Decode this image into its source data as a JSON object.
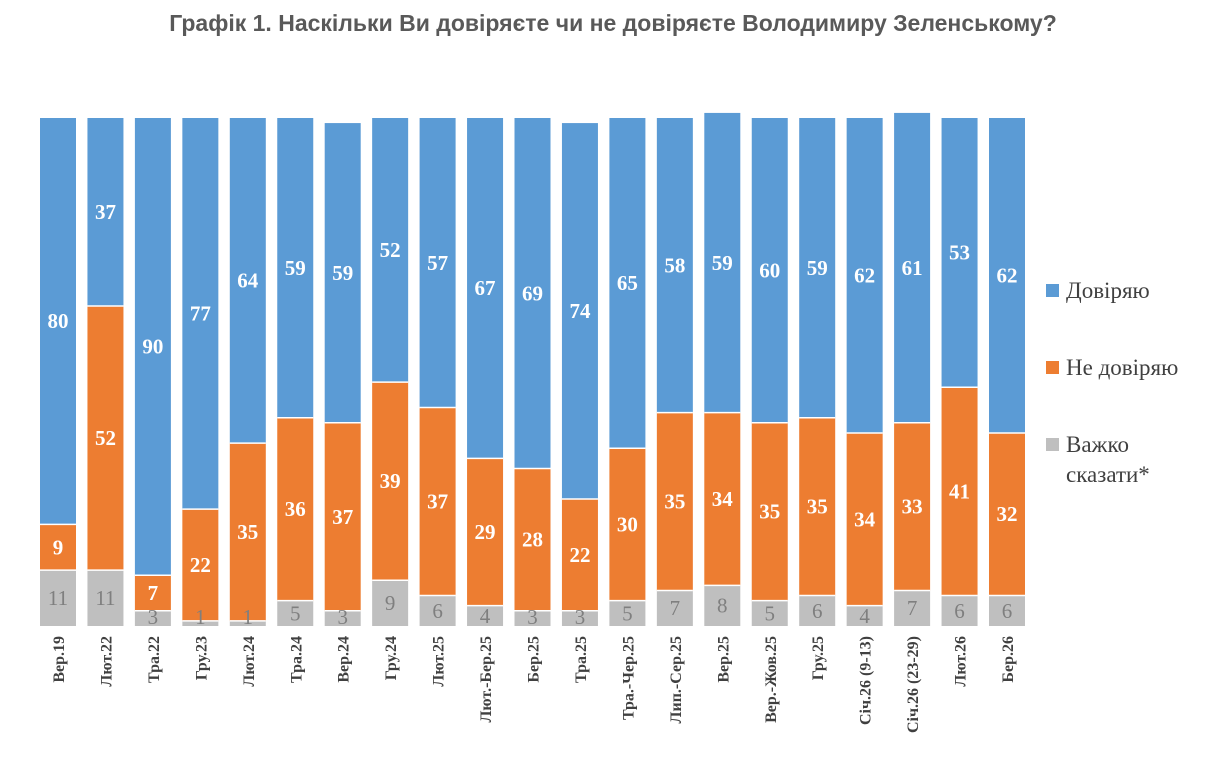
{
  "chart_data": {
    "type": "bar",
    "stacked": true,
    "title": "Графік 1. Наскільки Ви довіряєте чи не довіряєте Володимиру Зеленському?",
    "categories": [
      "Вер.19",
      "Лют.22",
      "Тра.22",
      "Гру.23",
      "Лют.24",
      "Тра.24",
      "Вер.24",
      "Гру.24",
      "Лют.25",
      "Лют.-Бер.25",
      "Бер.25",
      "Тра.25",
      "Тра.-Чер.25",
      "Лип.-Сер.25",
      "Вер.25",
      "Вер.-Жов.25",
      "Гру.25",
      "Січ.26 (9-13)",
      "Січ.26 (23-29)",
      "Лют.26",
      "Бер.26"
    ],
    "series": [
      {
        "name": "Важко сказати*",
        "color": "#bfbfbf",
        "label_color": "#7f7f7f",
        "values": [
          11,
          11,
          3,
          1,
          1,
          5,
          3,
          9,
          6,
          4,
          3,
          3,
          5,
          7,
          8,
          5,
          6,
          4,
          7,
          6,
          6
        ]
      },
      {
        "name": "Не довіряю",
        "color": "#ed7d31",
        "label_color": "#ffffff",
        "values": [
          9,
          52,
          7,
          22,
          35,
          36,
          37,
          39,
          37,
          29,
          28,
          22,
          30,
          35,
          34,
          35,
          35,
          34,
          33,
          41,
          32
        ]
      },
      {
        "name": "Довіряю",
        "color": "#5b9bd5",
        "label_color": "#ffffff",
        "values": [
          80,
          37,
          90,
          77,
          64,
          59,
          59,
          52,
          57,
          67,
          69,
          74,
          65,
          58,
          59,
          60,
          59,
          62,
          61,
          53,
          62
        ]
      }
    ],
    "ylim": [
      0,
      100
    ],
    "legend_position": "right",
    "legend_lines": [
      [
        "Довіряю"
      ],
      [
        "Не довіряю"
      ],
      [
        "Важко",
        "сказати*"
      ]
    ],
    "grid": false
  }
}
